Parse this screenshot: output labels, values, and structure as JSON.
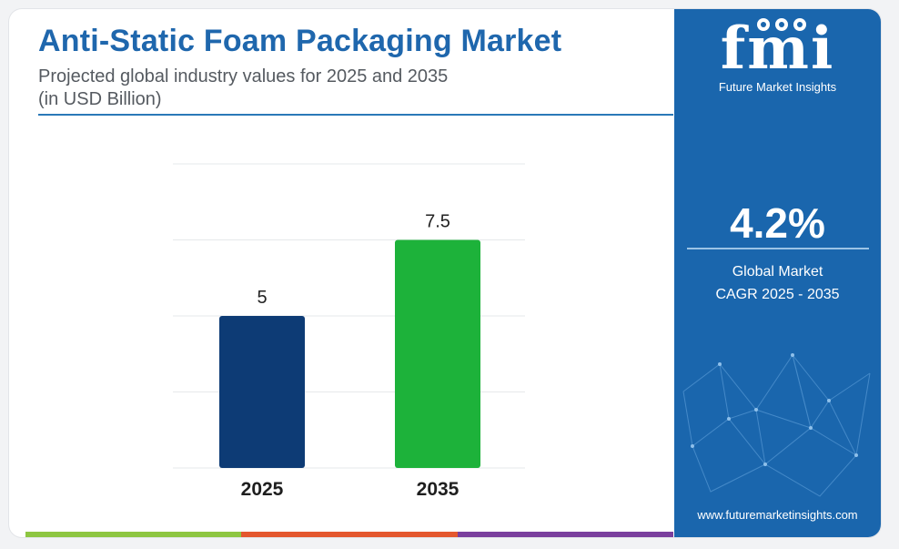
{
  "header": {
    "title": "Anti-Static Foam Packaging Market",
    "subtitle_line1": "Projected global industry values for 2025 and 2035",
    "subtitle_line2": "(in USD Billion)"
  },
  "chart_data": {
    "type": "bar",
    "categories": [
      "2025",
      "2035"
    ],
    "values": [
      5,
      7.5
    ],
    "value_labels": [
      "5",
      "7.5"
    ],
    "title": "Anti-Static Foam Packaging Market",
    "xlabel": "",
    "ylabel": "",
    "ylim": [
      0,
      10
    ],
    "grid": true,
    "bar_colors": [
      "#0d3b75",
      "#1db23a"
    ]
  },
  "sidebar": {
    "logo_text": "fmi",
    "logo_subtitle": "Future Market Insights",
    "cagr_value": "4.2%",
    "cagr_label_line1": "Global Market",
    "cagr_label_line2": "CAGR 2025 - 2035",
    "website": "www.futuremarketinsights.com"
  },
  "colors": {
    "title": "#1f67ad",
    "panel": "#1a66ad",
    "strip": [
      "#8dc641",
      "#e4572e",
      "#7a3f9d"
    ]
  }
}
